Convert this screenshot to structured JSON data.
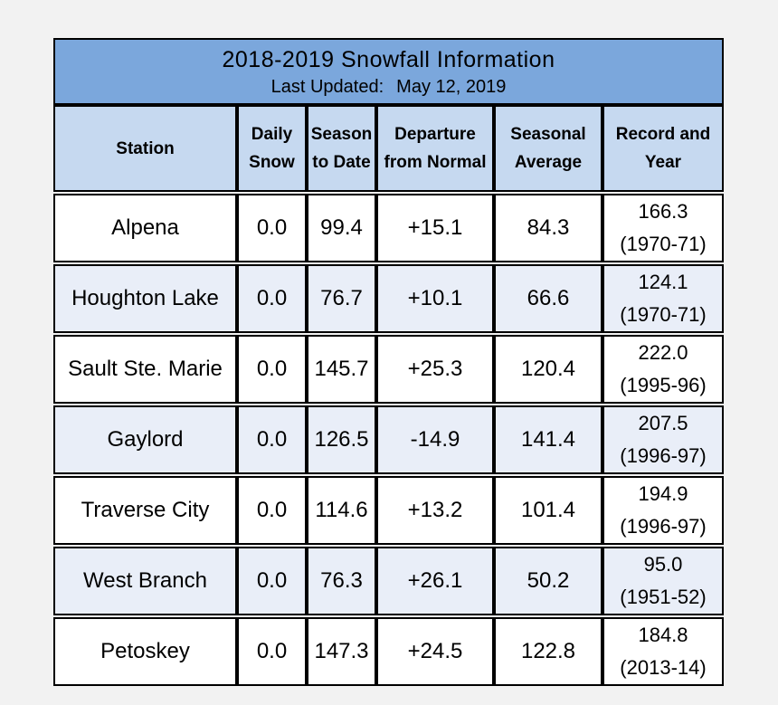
{
  "title": "2018-2019 Snowfall Information",
  "updated_label": "Last Updated:",
  "updated_date": "May 12, 2019",
  "headers": {
    "station": "Station",
    "daily_1": "Daily",
    "daily_2": "Snow",
    "season_1": "Season",
    "season_2": "to Date",
    "departure_1": "Departure",
    "departure_2": "from Normal",
    "average_1": "Seasonal",
    "average_2": "Average",
    "record_1": "Record and",
    "record_2": "Year"
  },
  "rows": [
    {
      "station": "Alpena",
      "daily": "0.0",
      "season": "99.4",
      "departure": "+15.1",
      "average": "84.3",
      "record": "166.3",
      "record_year": "(1970-71)"
    },
    {
      "station": "Houghton Lake",
      "daily": "0.0",
      "season": "76.7",
      "departure": "+10.1",
      "average": "66.6",
      "record": "124.1",
      "record_year": "(1970-71)"
    },
    {
      "station": "Sault Ste. Marie",
      "daily": "0.0",
      "season": "145.7",
      "departure": "+25.3",
      "average": "120.4",
      "record": "222.0",
      "record_year": "(1995-96)"
    },
    {
      "station": "Gaylord",
      "daily": "0.0",
      "season": "126.5",
      "departure": "-14.9",
      "average": "141.4",
      "record": "207.5",
      "record_year": "(1996-97)"
    },
    {
      "station": "Traverse City",
      "daily": "0.0",
      "season": "114.6",
      "departure": "+13.2",
      "average": "101.4",
      "record": "194.9",
      "record_year": "(1996-97)"
    },
    {
      "station": "West Branch",
      "daily": "0.0",
      "season": "76.3",
      "departure": "+26.1",
      "average": "50.2",
      "record": "95.0",
      "record_year": "(1951-52)"
    },
    {
      "station": "Petoskey",
      "daily": "0.0",
      "season": "147.3",
      "departure": "+24.5",
      "average": "122.8",
      "record": "184.8",
      "record_year": "(2013-14)"
    }
  ],
  "colors": {
    "title_bg": "#7ba7dc",
    "header_bg": "#c6d9f0",
    "row_alt_bg": "#e9eef8",
    "negative_text": "#e02020"
  }
}
